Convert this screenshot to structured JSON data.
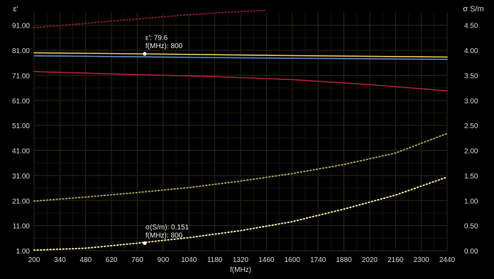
{
  "chart_data": {
    "type": "line",
    "y_left_label": "ε′",
    "y_right_label": "σ S/m",
    "xlabel": "f(MHz)",
    "x_ticks": [
      200,
      340,
      480,
      620,
      760,
      900,
      1040,
      1180,
      1320,
      1460,
      1600,
      1740,
      1880,
      2020,
      2160,
      2300,
      2440
    ],
    "x_range": [
      200,
      2440
    ],
    "y_left_ticks": [
      "1.00",
      "11.00",
      "21.00",
      "31.00",
      "41.00",
      "51.00",
      "61.00",
      "71.00",
      "81.00",
      "91.00"
    ],
    "y_left_range": [
      1,
      96
    ],
    "y_right_ticks": [
      "0.00",
      "0.50",
      "1.00",
      "1.50",
      "2.00",
      "2.50",
      "3.00",
      "3.50",
      "4.00",
      "4.50"
    ],
    "y_right_range": [
      0,
      4.75
    ],
    "grid": true,
    "colors": {
      "background": "#000000",
      "grid_major": "#2a2a14",
      "grid_minor": "#141409",
      "axis_text": "#d8d8d8",
      "series_yellow": "#e8c85a",
      "series_blue": "#5a88c8",
      "series_red": "#a8203a",
      "series_red_dotted": "#7a1a2a",
      "series_dotted_upper": "#9a9a50",
      "series_dotted_lower": "#e8e0a0",
      "marker": "#ffffff"
    },
    "series": [
      {
        "axis": "left",
        "style": "solid",
        "color_key": "series_yellow",
        "x": [
          200,
          760,
          1460,
          2440
        ],
        "y": [
          80.0,
          79.6,
          79.0,
          78.3
        ]
      },
      {
        "axis": "left",
        "style": "solid",
        "color_key": "series_blue",
        "x": [
          200,
          760,
          1460,
          2440
        ],
        "y": [
          78.8,
          78.4,
          77.9,
          77.4
        ]
      },
      {
        "axis": "left",
        "style": "solid",
        "color_key": "series_red",
        "x": [
          200,
          760,
          1180,
          1600,
          2020,
          2440
        ],
        "y": [
          72.5,
          71.3,
          70.5,
          69.3,
          67.3,
          64.8
        ]
      },
      {
        "axis": "left",
        "style": "dotted",
        "color_key": "series_red_dotted",
        "x": [
          200,
          480,
          760,
          1040,
          1320,
          1460
        ],
        "y": [
          90.0,
          91.8,
          93.5,
          95.2,
          96.5,
          97.0
        ]
      },
      {
        "axis": "right",
        "style": "dotted",
        "color_key": "series_dotted_upper",
        "x": [
          200,
          480,
          760,
          1040,
          1320,
          1600,
          1880,
          2160,
          2440
        ],
        "y": [
          0.99,
          1.07,
          1.16,
          1.26,
          1.39,
          1.54,
          1.72,
          1.95,
          2.34
        ]
      },
      {
        "axis": "right",
        "style": "dotted",
        "color_key": "series_dotted_lower",
        "x": [
          200,
          480,
          760,
          1040,
          1320,
          1600,
          1880,
          2160,
          2440
        ],
        "y": [
          0.01,
          0.05,
          0.15,
          0.26,
          0.4,
          0.58,
          0.83,
          1.11,
          1.47
        ]
      }
    ],
    "annotations": [
      {
        "axis": "left",
        "x": 800,
        "y": 79.6,
        "lines": [
          "ε′: 79.6",
          "f(MHz): 800"
        ]
      },
      {
        "axis": "right",
        "x": 800,
        "y": 0.151,
        "lines": [
          "σ(S/m): 0.151",
          "f(MHz): 800"
        ]
      }
    ]
  }
}
